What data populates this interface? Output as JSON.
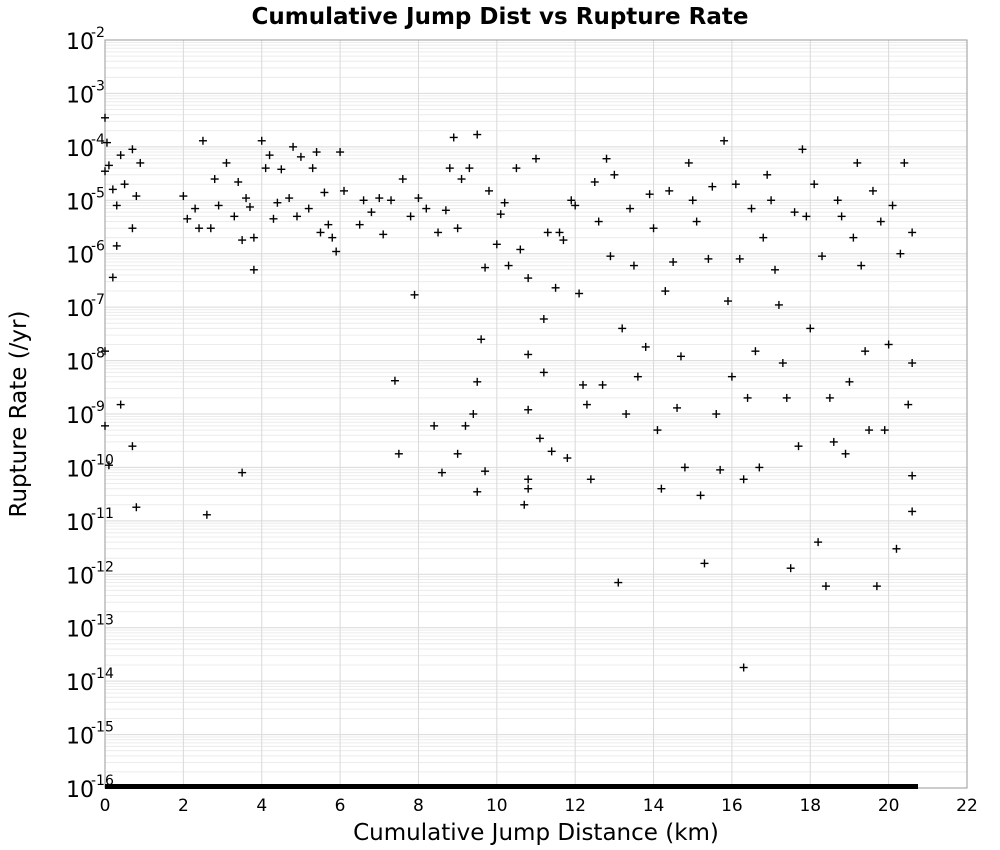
{
  "chart_data": {
    "type": "scatter",
    "title": "Cumulative Jump Dist vs Rupture Rate",
    "xlabel": "Cumulative Jump Distance (km)",
    "ylabel": "Rupture Rate (/yr)",
    "xlim": [
      0,
      22
    ],
    "ylim": [
      1e-16,
      0.01
    ],
    "y_scale": "log",
    "grid": true,
    "marker": "+",
    "x_ticks": [
      0,
      2,
      4,
      6,
      8,
      10,
      12,
      14,
      16,
      18,
      20,
      22
    ],
    "y_ticks": [
      {
        "value": 0.01,
        "base": "10",
        "exp": "-2"
      },
      {
        "value": 0.001,
        "base": "10",
        "exp": "-3"
      },
      {
        "value": 0.0001,
        "base": "10",
        "exp": "-4"
      },
      {
        "value": 1e-05,
        "base": "10",
        "exp": "-5"
      },
      {
        "value": 1e-06,
        "base": "10",
        "exp": "-6"
      },
      {
        "value": 1e-07,
        "base": "10",
        "exp": "-7"
      },
      {
        "value": 1e-08,
        "base": "10",
        "exp": "-8"
      },
      {
        "value": 1e-09,
        "base": "10",
        "exp": "-9"
      },
      {
        "value": 1e-10,
        "base": "10",
        "exp": "-10"
      },
      {
        "value": 1e-11,
        "base": "10",
        "exp": "-11"
      },
      {
        "value": 1e-12,
        "base": "10",
        "exp": "-12"
      },
      {
        "value": 1e-13,
        "base": "10",
        "exp": "-13"
      },
      {
        "value": 1e-14,
        "base": "10",
        "exp": "-14"
      },
      {
        "value": 1e-15,
        "base": "10",
        "exp": "-15"
      },
      {
        "value": 1e-16,
        "base": "10",
        "exp": "-16"
      }
    ],
    "series": [
      {
        "points": [
          [
            0.0,
            0.00035
          ],
          [
            0.0,
            3.5e-05
          ],
          [
            0.05,
            0.00012
          ],
          [
            0.1,
            4.5e-05
          ],
          [
            0.2,
            1.6e-05
          ],
          [
            0.3,
            8e-06
          ],
          [
            0.4,
            7e-05
          ],
          [
            0.5,
            2e-05
          ],
          [
            0.7,
            9e-05
          ],
          [
            0.8,
            1.2e-05
          ],
          [
            0.9,
            5e-05
          ],
          [
            0.2,
            3.6e-07
          ],
          [
            0.3,
            1.4e-06
          ],
          [
            0.7,
            3e-06
          ],
          [
            0.0,
            6e-10
          ],
          [
            0.4,
            1.5e-09
          ],
          [
            0.7,
            2.5e-10
          ],
          [
            0.1,
            1.1e-10
          ],
          [
            0.8,
            1.8e-11
          ],
          [
            0.0,
            1.5e-08
          ],
          [
            2.0,
            1.2e-05
          ],
          [
            2.1,
            4.5e-06
          ],
          [
            2.3,
            7e-06
          ],
          [
            2.4,
            3e-06
          ],
          [
            2.5,
            0.00013
          ],
          [
            2.7,
            3e-06
          ],
          [
            2.8,
            2.5e-05
          ],
          [
            2.9,
            8e-06
          ],
          [
            3.1,
            5e-05
          ],
          [
            3.3,
            5e-06
          ],
          [
            3.4,
            2.2e-05
          ],
          [
            3.5,
            1.8e-06
          ],
          [
            3.6,
            1.1e-05
          ],
          [
            3.7,
            7.5e-06
          ],
          [
            3.8,
            2e-06
          ],
          [
            3.8,
            5e-07
          ],
          [
            4.0,
            0.00013
          ],
          [
            4.1,
            4e-05
          ],
          [
            4.2,
            7e-05
          ],
          [
            4.3,
            4.5e-06
          ],
          [
            4.5,
            3.8e-05
          ],
          [
            4.7,
            1.1e-05
          ],
          [
            4.8,
            0.0001
          ],
          [
            5.0,
            6.5e-05
          ],
          [
            5.2,
            7e-06
          ],
          [
            5.4,
            8e-05
          ],
          [
            5.5,
            2.5e-06
          ],
          [
            5.6,
            1.4e-05
          ],
          [
            5.7,
            3.5e-06
          ],
          [
            5.9,
            1.1e-06
          ],
          [
            6.0,
            8e-05
          ],
          [
            6.1,
            1.5e-05
          ],
          [
            5.3,
            4e-05
          ],
          [
            5.8,
            2e-06
          ],
          [
            4.9,
            5e-06
          ],
          [
            4.4,
            9e-06
          ],
          [
            2.6,
            1.3e-11
          ],
          [
            3.5,
            8e-11
          ],
          [
            6.5,
            3.5e-06
          ],
          [
            6.6,
            1e-05
          ],
          [
            6.8,
            6e-06
          ],
          [
            7.0,
            1.1e-05
          ],
          [
            7.1,
            2.3e-06
          ],
          [
            7.3,
            1e-05
          ],
          [
            7.4,
            4.2e-09
          ],
          [
            7.5,
            1.8e-10
          ],
          [
            7.6,
            2.5e-05
          ],
          [
            7.8,
            5e-06
          ],
          [
            7.9,
            1.7e-07
          ],
          [
            8.0,
            1.1e-05
          ],
          [
            8.2,
            7e-06
          ],
          [
            8.4,
            6e-10
          ],
          [
            8.5,
            2.5e-06
          ],
          [
            8.6,
            8e-11
          ],
          [
            8.7,
            6.5e-06
          ],
          [
            8.8,
            4e-05
          ],
          [
            8.9,
            0.00015
          ],
          [
            9.0,
            1.8e-10
          ],
          [
            9.1,
            2.5e-05
          ],
          [
            9.2,
            6e-10
          ],
          [
            9.3,
            4e-05
          ],
          [
            9.4,
            1e-09
          ],
          [
            9.5,
            0.00017
          ],
          [
            9.5,
            4e-09
          ],
          [
            9.5,
            3.5e-11
          ],
          [
            9.6,
            2.5e-08
          ],
          [
            9.7,
            5.5e-07
          ],
          [
            9.7,
            8.5e-11
          ],
          [
            9.8,
            1.5e-05
          ],
          [
            9.0,
            3e-06
          ],
          [
            10.0,
            1.5e-06
          ],
          [
            10.1,
            5.5e-06
          ],
          [
            10.2,
            9e-06
          ],
          [
            10.3,
            6e-07
          ],
          [
            10.5,
            4e-05
          ],
          [
            10.6,
            1.2e-06
          ],
          [
            10.7,
            2e-11
          ],
          [
            10.8,
            1.3e-08
          ],
          [
            10.8,
            3.5e-07
          ],
          [
            10.8,
            1.2e-09
          ],
          [
            10.8,
            6e-11
          ],
          [
            10.8,
            4e-11
          ],
          [
            11.0,
            6e-05
          ],
          [
            11.1,
            3.5e-10
          ],
          [
            11.2,
            6e-08
          ],
          [
            11.2,
            6e-09
          ],
          [
            11.3,
            2.5e-06
          ],
          [
            11.4,
            2e-10
          ],
          [
            11.5,
            2.3e-07
          ],
          [
            11.6,
            2.5e-06
          ],
          [
            11.7,
            1.8e-06
          ],
          [
            11.8,
            1.5e-10
          ],
          [
            11.9,
            1e-05
          ],
          [
            12.0,
            8e-06
          ],
          [
            12.1,
            1.8e-07
          ],
          [
            12.2,
            3.5e-09
          ],
          [
            12.3,
            1.5e-09
          ],
          [
            12.4,
            6e-11
          ],
          [
            12.5,
            2.2e-05
          ],
          [
            12.6,
            4e-06
          ],
          [
            12.7,
            3.5e-09
          ],
          [
            12.8,
            6e-05
          ],
          [
            12.9,
            9e-07
          ],
          [
            13.0,
            3e-05
          ],
          [
            13.1,
            7e-13
          ],
          [
            13.2,
            4e-08
          ],
          [
            13.3,
            1e-09
          ],
          [
            13.4,
            7e-06
          ],
          [
            13.5,
            6e-07
          ],
          [
            13.6,
            5e-09
          ],
          [
            13.8,
            1.8e-08
          ],
          [
            13.9,
            1.3e-05
          ],
          [
            14.0,
            3e-06
          ],
          [
            14.1,
            5e-10
          ],
          [
            14.2,
            4e-11
          ],
          [
            14.3,
            2e-07
          ],
          [
            14.4,
            1.5e-05
          ],
          [
            14.5,
            7e-07
          ],
          [
            14.6,
            1.3e-09
          ],
          [
            14.7,
            1.2e-08
          ],
          [
            14.8,
            1e-10
          ],
          [
            14.9,
            5e-05
          ],
          [
            15.0,
            1e-05
          ],
          [
            15.1,
            4e-06
          ],
          [
            15.2,
            3e-11
          ],
          [
            15.3,
            1.6e-12
          ],
          [
            15.4,
            8e-07
          ],
          [
            15.5,
            1.8e-05
          ],
          [
            15.6,
            1e-09
          ],
          [
            15.7,
            9e-11
          ],
          [
            15.8,
            0.00013
          ],
          [
            15.9,
            1.3e-07
          ],
          [
            16.0,
            5e-09
          ],
          [
            16.1,
            2e-05
          ],
          [
            16.2,
            8e-07
          ],
          [
            16.3,
            1.8e-14
          ],
          [
            16.3,
            6e-11
          ],
          [
            16.4,
            2e-09
          ],
          [
            16.5,
            7e-06
          ],
          [
            16.6,
            1.5e-08
          ],
          [
            16.7,
            1e-10
          ],
          [
            16.8,
            2e-06
          ],
          [
            16.9,
            3e-05
          ],
          [
            17.0,
            1e-05
          ],
          [
            17.1,
            5e-07
          ],
          [
            17.2,
            1.1e-07
          ],
          [
            17.3,
            9e-09
          ],
          [
            17.4,
            2e-09
          ],
          [
            17.5,
            1.3e-12
          ],
          [
            17.6,
            6e-06
          ],
          [
            17.7,
            2.5e-10
          ],
          [
            17.8,
            9e-05
          ],
          [
            17.9,
            5e-06
          ],
          [
            18.0,
            4e-08
          ],
          [
            18.1,
            2e-05
          ],
          [
            18.2,
            4e-12
          ],
          [
            18.3,
            9e-07
          ],
          [
            18.4,
            6e-13
          ],
          [
            18.5,
            2e-09
          ],
          [
            18.6,
            3e-10
          ],
          [
            18.7,
            1e-05
          ],
          [
            18.8,
            5e-06
          ],
          [
            18.9,
            1.8e-10
          ],
          [
            19.0,
            4e-09
          ],
          [
            19.1,
            2e-06
          ],
          [
            19.2,
            5e-05
          ],
          [
            19.3,
            6e-07
          ],
          [
            19.4,
            1.5e-08
          ],
          [
            19.5,
            5e-10
          ],
          [
            19.6,
            1.5e-05
          ],
          [
            19.7,
            6e-13
          ],
          [
            19.8,
            4e-06
          ],
          [
            19.9,
            5e-10
          ],
          [
            20.0,
            2e-08
          ],
          [
            20.1,
            8e-06
          ],
          [
            20.2,
            3e-12
          ],
          [
            20.3,
            1e-06
          ],
          [
            20.4,
            5e-05
          ],
          [
            20.5,
            1.5e-09
          ],
          [
            20.6,
            2.5e-06
          ],
          [
            20.6,
            9e-09
          ],
          [
            20.6,
            1.5e-11
          ],
          [
            20.6,
            7e-11
          ]
        ]
      }
    ]
  }
}
